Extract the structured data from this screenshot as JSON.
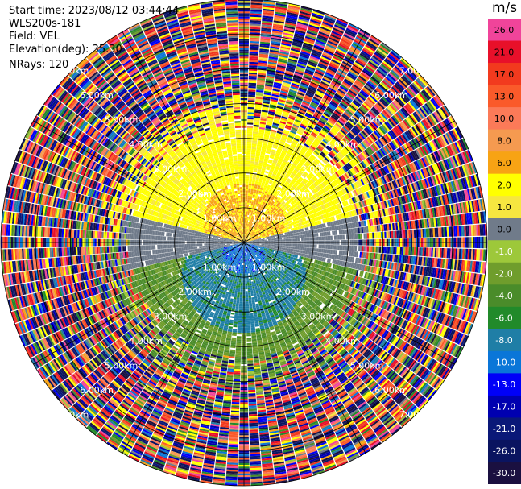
{
  "header": {
    "start_time": "Start time: 2023/08/12 03:44:44",
    "station": "WLS200s-181",
    "field": "Field: VEL",
    "elevation": "Elevation(deg): 35.30",
    "nrays": "NRays: 120"
  },
  "colorbar": {
    "unit": "m/s",
    "bins": [
      {
        "label": "26.0",
        "color": "#f0449a"
      },
      {
        "label": "21.0",
        "color": "#e8102a"
      },
      {
        "label": "17.0",
        "color": "#f23a1e"
      },
      {
        "label": "13.0",
        "color": "#fa5a2a"
      },
      {
        "label": "10.0",
        "color": "#fb7a58"
      },
      {
        "label": "8.0",
        "color": "#f59a50"
      },
      {
        "label": "6.0",
        "color": "#f7a314"
      },
      {
        "label": "2.0",
        "color": "#ffff00"
      },
      {
        "label": "1.0",
        "color": "#f6e640"
      },
      {
        "label": "0.0",
        "color": "#707b8a"
      },
      {
        "label": "-1.0",
        "color": "#9dc83a"
      },
      {
        "label": "-2.0",
        "color": "#6f9d2c"
      },
      {
        "label": "-4.0",
        "color": "#4a8c2a"
      },
      {
        "label": "-6.0",
        "color": "#218a2a"
      },
      {
        "label": "-8.0",
        "color": "#1f7ea6"
      },
      {
        "label": "-10.0",
        "color": "#0a76d8"
      },
      {
        "label": "-13.0",
        "color": "#0000f8"
      },
      {
        "label": "-17.0",
        "color": "#0000b0"
      },
      {
        "label": "-21.0",
        "color": "#0a1878"
      },
      {
        "label": "-26.0",
        "color": "#0a1460"
      },
      {
        "label": "-30.0",
        "color": "#1a1040"
      }
    ]
  },
  "chart_data": {
    "type": "heatmap",
    "projection": "polar PPI",
    "field": "VEL",
    "rays": 120,
    "range_rings_km": [
      1.0,
      2.0,
      3.0,
      4.0,
      5.0,
      6.0,
      7.0
    ],
    "ring_labels": [
      "1.00km",
      "2.00km",
      "3.00km",
      "4.00km",
      "5.00km",
      "6.00km",
      "7.00km"
    ],
    "max_range_km": 7.0,
    "zones": [
      {
        "direction": "north",
        "range_km": [
          0,
          1.7
        ],
        "velocity_ms": 8.0
      },
      {
        "direction": "north",
        "range_km": [
          1.7,
          3.0
        ],
        "velocity_ms": 2.0
      },
      {
        "direction": "south",
        "range_km": [
          0,
          1.0
        ],
        "velocity_ms": -10.0
      },
      {
        "direction": "south",
        "range_km": [
          1.0,
          2.6
        ],
        "velocity_ms": -6.0
      },
      {
        "direction": "south",
        "range_km": [
          2.6,
          3.6
        ],
        "velocity_ms": -1.0
      },
      {
        "direction": "east-west",
        "range_km": [
          0,
          3.0
        ],
        "velocity_ms": 0.0
      }
    ],
    "grid": true,
    "legend_position": "right"
  }
}
